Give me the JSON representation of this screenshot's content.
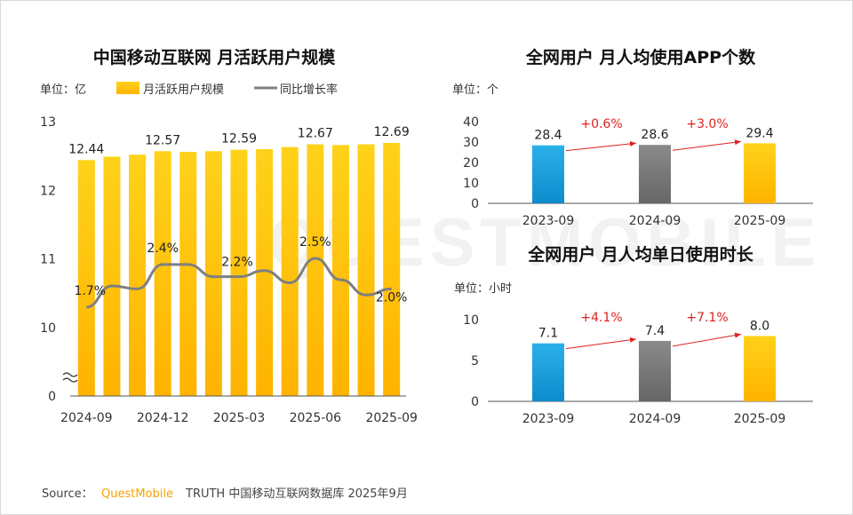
{
  "colors": {
    "bar_gold": "#ffc000",
    "bar_blue": "#1aa3dd",
    "bar_gray": "#7f7f7f",
    "line_gray": "#7f7f7f",
    "pct_red": "#e02020",
    "brand_orange": "#f5a300"
  },
  "watermark": "QUESTMOBILE",
  "source": {
    "prefix": "Source：",
    "brand": "QuestMobile",
    "text": "TRUTH 中国移动互联网数据库 2025年9月"
  },
  "chart_data": [
    {
      "type": "bar",
      "title": "中国移动互联网 月活跃用户规模",
      "unit": "单位：亿",
      "legend": [
        "月活跃用户规模",
        "同比增长率"
      ],
      "legend_placement": "top",
      "x": [
        "2024-09",
        "2024-10",
        "2024-11",
        "2024-12",
        "2025-01",
        "2025-02",
        "2025-03",
        "2025-04",
        "2025-05",
        "2025-06",
        "2025-07",
        "2025-08",
        "2025-09"
      ],
      "x_tick_labels": [
        "2024-09",
        "2024-12",
        "2025-03",
        "2025-06",
        "2025-09"
      ],
      "y_tick_labels": [
        "0",
        "10",
        "11",
        "12",
        "13"
      ],
      "axis_break": true,
      "ylim": [
        10,
        13
      ],
      "series": [
        {
          "name": "月活跃用户规模",
          "kind": "bar",
          "values": [
            12.44,
            12.49,
            12.52,
            12.57,
            12.56,
            12.57,
            12.59,
            12.6,
            12.63,
            12.67,
            12.66,
            12.67,
            12.69
          ]
        },
        {
          "name": "同比增长率",
          "kind": "line",
          "values": [
            1.7,
            2.05,
            2.0,
            2.4,
            2.4,
            2.2,
            2.2,
            2.3,
            2.1,
            2.5,
            2.15,
            1.9,
            2.0
          ]
        }
      ],
      "bar_labels": [
        {
          "index": 0,
          "text": "12.44"
        },
        {
          "index": 3,
          "text": "12.57"
        },
        {
          "index": 6,
          "text": "12.59"
        },
        {
          "index": 9,
          "text": "12.67"
        },
        {
          "index": 12,
          "text": "12.69"
        }
      ],
      "line_labels": [
        {
          "index": 0,
          "text": "1.7%"
        },
        {
          "index": 3,
          "text": "2.4%"
        },
        {
          "index": 6,
          "text": "2.2%"
        },
        {
          "index": 9,
          "text": "2.5%"
        },
        {
          "index": 12,
          "text": "2.0%"
        }
      ]
    },
    {
      "type": "bar",
      "title": "全网用户 月人均使用APP个数",
      "unit": "单位：个",
      "categories": [
        "2023-09",
        "2024-09",
        "2025-09"
      ],
      "values": [
        28.4,
        28.6,
        29.4
      ],
      "value_labels": [
        "28.4",
        "28.6",
        "29.4"
      ],
      "growth_labels": [
        "+0.6%",
        "+3.0%"
      ],
      "y_tick_labels": [
        "0",
        "10",
        "20",
        "30",
        "40"
      ],
      "ylim": [
        0,
        40
      ]
    },
    {
      "type": "bar",
      "title": "全网用户 月人均单日使用时长",
      "unit": "单位：小时",
      "categories": [
        "2023-09",
        "2024-09",
        "2025-09"
      ],
      "values": [
        7.1,
        7.4,
        8.0
      ],
      "value_labels": [
        "7.1",
        "7.4",
        "8.0"
      ],
      "growth_labels": [
        "+4.1%",
        "+7.1%"
      ],
      "y_tick_labels": [
        "0",
        "5",
        "10"
      ],
      "ylim": [
        0,
        10
      ]
    }
  ]
}
